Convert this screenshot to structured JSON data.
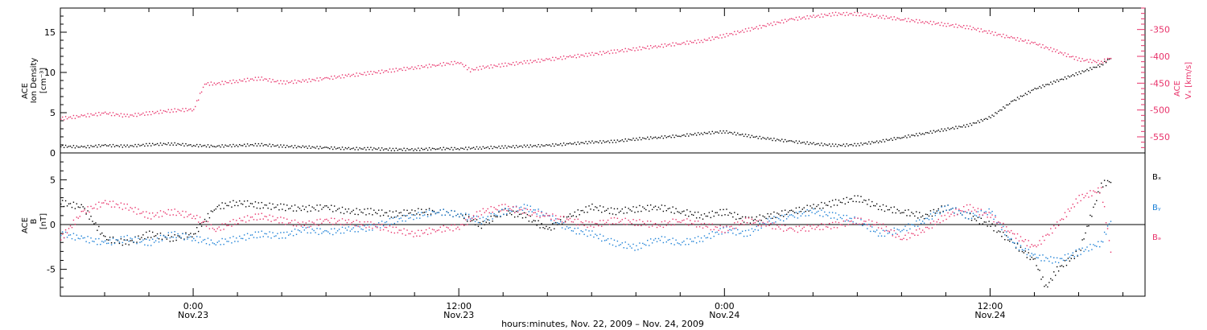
{
  "chart_data": [
    {
      "type": "scatter",
      "panel": "ion-density-velocity",
      "ylabel_lines": [
        "ACE",
        "Ion Density",
        "[cm⁻³]"
      ],
      "ylim": [
        0,
        18
      ],
      "y_ticks": [
        0,
        5,
        10,
        15
      ],
      "right_axis": {
        "label_lines": [
          "ACE",
          "Vₓ [km/s]"
        ],
        "ylim": [
          -580,
          -310
        ],
        "ticks": [
          -550,
          -500,
          -450,
          -400,
          -350
        ],
        "color": "#e8336b"
      },
      "xlim": [
        -6,
        43
      ],
      "series": [
        {
          "axis": "left",
          "color": "#000000",
          "points": [
            [
              -6,
              0.9
            ],
            [
              -5,
              0.8
            ],
            [
              -4,
              1.0
            ],
            [
              -3,
              0.9
            ],
            [
              -2,
              1.1
            ],
            [
              -1,
              1.2
            ],
            [
              0,
              1.0
            ],
            [
              1,
              0.9
            ],
            [
              2,
              1.0
            ],
            [
              3,
              1.1
            ],
            [
              4,
              0.9
            ],
            [
              5,
              0.8
            ],
            [
              6,
              0.7
            ],
            [
              7,
              0.6
            ],
            [
              8,
              0.6
            ],
            [
              9,
              0.5
            ],
            [
              10,
              0.5
            ],
            [
              11,
              0.6
            ],
            [
              12,
              0.6
            ],
            [
              13,
              0.7
            ],
            [
              14,
              0.8
            ],
            [
              15,
              0.9
            ],
            [
              16,
              1.0
            ],
            [
              17,
              1.2
            ],
            [
              18,
              1.4
            ],
            [
              19,
              1.5
            ],
            [
              20,
              1.8
            ],
            [
              21,
              2.0
            ],
            [
              22,
              2.2
            ],
            [
              23,
              2.5
            ],
            [
              24,
              2.7
            ],
            [
              25,
              2.2
            ],
            [
              26,
              1.8
            ],
            [
              27,
              1.5
            ],
            [
              28,
              1.2
            ],
            [
              29,
              1.0
            ],
            [
              30,
              1.1
            ],
            [
              31,
              1.5
            ],
            [
              32,
              2.0
            ],
            [
              33,
              2.5
            ],
            [
              34,
              3.0
            ],
            [
              35,
              3.5
            ],
            [
              36,
              4.5
            ],
            [
              37,
              6.5
            ],
            [
              38,
              8.0
            ],
            [
              39,
              9.0
            ],
            [
              40,
              10.0
            ],
            [
              41,
              11.0
            ],
            [
              41.5,
              12.0
            ]
          ]
        },
        {
          "axis": "right",
          "color": "#e8336b",
          "points": [
            [
              -6,
              -515
            ],
            [
              -5,
              -510
            ],
            [
              -4,
              -505
            ],
            [
              -3,
              -510
            ],
            [
              -2,
              -505
            ],
            [
              -1,
              -500
            ],
            [
              0,
              -498
            ],
            [
              0.5,
              -450
            ],
            [
              1,
              -450
            ],
            [
              2,
              -445
            ],
            [
              3,
              -440
            ],
            [
              4,
              -448
            ],
            [
              5,
              -445
            ],
            [
              6,
              -440
            ],
            [
              7,
              -435
            ],
            [
              8,
              -430
            ],
            [
              9,
              -425
            ],
            [
              10,
              -420
            ],
            [
              11,
              -415
            ],
            [
              12,
              -410
            ],
            [
              12.5,
              -425
            ],
            [
              13,
              -420
            ],
            [
              14,
              -415
            ],
            [
              15,
              -410
            ],
            [
              16,
              -405
            ],
            [
              17,
              -400
            ],
            [
              18,
              -395
            ],
            [
              19,
              -390
            ],
            [
              20,
              -385
            ],
            [
              21,
              -380
            ],
            [
              22,
              -375
            ],
            [
              23,
              -370
            ],
            [
              24,
              -360
            ],
            [
              25,
              -350
            ],
            [
              26,
              -340
            ],
            [
              27,
              -330
            ],
            [
              28,
              -325
            ],
            [
              29,
              -320
            ],
            [
              30,
              -320
            ],
            [
              31,
              -325
            ],
            [
              32,
              -330
            ],
            [
              33,
              -335
            ],
            [
              34,
              -340
            ],
            [
              35,
              -345
            ],
            [
              36,
              -355
            ],
            [
              37,
              -365
            ],
            [
              38,
              -375
            ],
            [
              39,
              -390
            ],
            [
              40,
              -405
            ],
            [
              41,
              -410
            ],
            [
              41.5,
              -400
            ]
          ]
        }
      ]
    },
    {
      "type": "scatter",
      "panel": "magnetic-field",
      "ylabel_lines": [
        "ACE",
        "B",
        "[nT]"
      ],
      "ylim": [
        -8,
        8
      ],
      "y_ticks": [
        -5,
        0,
        5
      ],
      "xlim": [
        -6,
        43
      ],
      "zero_line": true,
      "series": [
        {
          "name": "Bₓ",
          "color": "#000000",
          "points": [
            [
              -6,
              2.5
            ],
            [
              -5,
              2.0
            ],
            [
              -4,
              -1.5
            ],
            [
              -3,
              -2.0
            ],
            [
              -2,
              -1.0
            ],
            [
              -1,
              -1.5
            ],
            [
              0,
              -1.0
            ],
            [
              1,
              2.0
            ],
            [
              2,
              2.5
            ],
            [
              3,
              2.2
            ],
            [
              4,
              2.0
            ],
            [
              5,
              1.8
            ],
            [
              6,
              2.0
            ],
            [
              7,
              1.5
            ],
            [
              8,
              1.5
            ],
            [
              9,
              1.2
            ],
            [
              10,
              1.5
            ],
            [
              11,
              1.5
            ],
            [
              12,
              1.2
            ],
            [
              13,
              0.0
            ],
            [
              14,
              1.5
            ],
            [
              15,
              1.0
            ],
            [
              16,
              -0.5
            ],
            [
              17,
              1.0
            ],
            [
              18,
              2.0
            ],
            [
              19,
              1.5
            ],
            [
              20,
              1.8
            ],
            [
              21,
              2.0
            ],
            [
              22,
              1.5
            ],
            [
              23,
              1.0
            ],
            [
              24,
              1.5
            ],
            [
              25,
              0.5
            ],
            [
              26,
              1.0
            ],
            [
              27,
              1.5
            ],
            [
              28,
              2.0
            ],
            [
              29,
              2.5
            ],
            [
              30,
              3.0
            ],
            [
              31,
              2.0
            ],
            [
              32,
              1.5
            ],
            [
              33,
              1.0
            ],
            [
              34,
              2.0
            ],
            [
              35,
              1.0
            ],
            [
              36,
              0.0
            ],
            [
              37,
              -2.0
            ],
            [
              38,
              -4.0
            ],
            [
              38.5,
              -7.0
            ],
            [
              39,
              -5.0
            ],
            [
              40,
              -3.0
            ],
            [
              41,
              4.5
            ],
            [
              41.5,
              5.0
            ]
          ]
        },
        {
          "name": "Bᵧ",
          "color": "#1a7fd6",
          "points": [
            [
              -6,
              -1.0
            ],
            [
              -5,
              -1.5
            ],
            [
              -4,
              -2.0
            ],
            [
              -3,
              -1.5
            ],
            [
              -2,
              -2.0
            ],
            [
              -1,
              -1.0
            ],
            [
              0,
              -1.5
            ],
            [
              1,
              -2.0
            ],
            [
              2,
              -1.5
            ],
            [
              3,
              -1.0
            ],
            [
              4,
              -1.2
            ],
            [
              5,
              -0.5
            ],
            [
              6,
              -0.8
            ],
            [
              7,
              -0.5
            ],
            [
              8,
              -0.3
            ],
            [
              9,
              0.5
            ],
            [
              10,
              1.0
            ],
            [
              11,
              1.5
            ],
            [
              12,
              1.2
            ],
            [
              13,
              0.5
            ],
            [
              14,
              1.5
            ],
            [
              15,
              2.0
            ],
            [
              16,
              1.0
            ],
            [
              17,
              -0.5
            ],
            [
              18,
              -1.0
            ],
            [
              19,
              -2.0
            ],
            [
              20,
              -2.5
            ],
            [
              21,
              -1.5
            ],
            [
              22,
              -2.0
            ],
            [
              23,
              -1.5
            ],
            [
              24,
              -0.5
            ],
            [
              25,
              -1.0
            ],
            [
              26,
              0.5
            ],
            [
              27,
              1.0
            ],
            [
              28,
              1.5
            ],
            [
              29,
              1.0
            ],
            [
              30,
              0.5
            ],
            [
              31,
              -1.0
            ],
            [
              32,
              -0.5
            ],
            [
              33,
              0.5
            ],
            [
              34,
              2.0
            ],
            [
              35,
              1.0
            ],
            [
              36,
              1.5
            ],
            [
              37,
              -2.0
            ],
            [
              38,
              -3.5
            ],
            [
              39,
              -4.0
            ],
            [
              40,
              -3.0
            ],
            [
              41,
              -2.0
            ],
            [
              41.5,
              1.0
            ]
          ]
        },
        {
          "name": "Bₔ",
          "color": "#e8336b",
          "points": [
            [
              -6,
              -1.5
            ],
            [
              -5,
              1.5
            ],
            [
              -4,
              2.5
            ],
            [
              -3,
              2.0
            ],
            [
              -2,
              1.0
            ],
            [
              -1,
              1.5
            ],
            [
              0,
              1.0
            ],
            [
              1,
              -0.5
            ],
            [
              2,
              0.5
            ],
            [
              3,
              1.0
            ],
            [
              4,
              0.5
            ],
            [
              5,
              0.0
            ],
            [
              6,
              0.5
            ],
            [
              7,
              0.3
            ],
            [
              8,
              0.0
            ],
            [
              9,
              -0.5
            ],
            [
              10,
              -1.0
            ],
            [
              11,
              -0.5
            ],
            [
              12,
              -0.2
            ],
            [
              13,
              1.5
            ],
            [
              14,
              2.0
            ],
            [
              15,
              1.5
            ],
            [
              16,
              1.0
            ],
            [
              17,
              0.5
            ],
            [
              18,
              0.0
            ],
            [
              19,
              0.5
            ],
            [
              20,
              0.3
            ],
            [
              21,
              0.0
            ],
            [
              22,
              0.5
            ],
            [
              23,
              0.0
            ],
            [
              24,
              -0.5
            ],
            [
              25,
              0.5
            ],
            [
              26,
              0.0
            ],
            [
              27,
              -0.5
            ],
            [
              28,
              -0.3
            ],
            [
              29,
              0.0
            ],
            [
              30,
              0.5
            ],
            [
              31,
              0.0
            ],
            [
              32,
              -1.5
            ],
            [
              33,
              -0.5
            ],
            [
              34,
              1.0
            ],
            [
              35,
              2.0
            ],
            [
              36,
              1.0
            ],
            [
              37,
              -1.0
            ],
            [
              38,
              -2.5
            ],
            [
              39,
              0.0
            ],
            [
              40,
              3.0
            ],
            [
              41,
              4.0
            ],
            [
              41.5,
              -4.0
            ]
          ]
        }
      ]
    }
  ],
  "x_axis": {
    "major_ticks": [
      {
        "t": 0,
        "time": "0:00",
        "date": "Nov.23"
      },
      {
        "t": 12,
        "time": "12:00",
        "date": "Nov.23"
      },
      {
        "t": 24,
        "time": "0:00",
        "date": "Nov.24"
      },
      {
        "t": 36,
        "time": "12:00",
        "date": "Nov.24"
      }
    ],
    "label": "hours:minutes, Nov. 22, 2009 – Nov. 24, 2009"
  }
}
